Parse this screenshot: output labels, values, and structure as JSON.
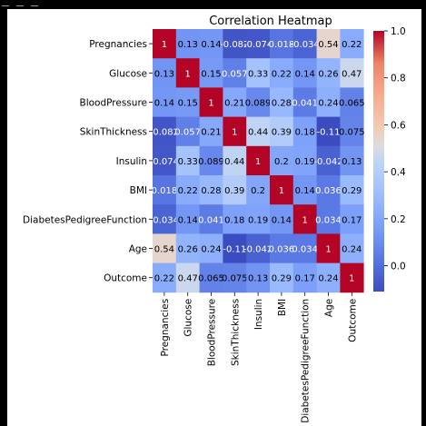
{
  "window": {
    "top_icons": [
      "chevron-icon",
      "home-icon",
      "save-icon"
    ]
  },
  "colors": {
    "background": "#000000",
    "figure": "#ffffff",
    "cmap_low": "#3b4cc0",
    "cmap_mid": "#dddddd",
    "cmap_high": "#b40426"
  },
  "chart_data": {
    "type": "heatmap",
    "title": "Correlation Heatmap",
    "xlabel": "",
    "ylabel": "",
    "colormap": "coolwarm",
    "annotations": true,
    "categories": [
      "Pregnancies",
      "Glucose",
      "BloodPressure",
      "SkinThickness",
      "Insulin",
      "BMI",
      "DiabetesPedigreeFunction",
      "Age",
      "Outcome"
    ],
    "values": [
      [
        1,
        0.13,
        0.14,
        -0.082,
        -0.074,
        0.018,
        -0.034,
        0.54,
        0.22
      ],
      [
        0.13,
        1,
        0.15,
        0.057,
        0.33,
        0.22,
        0.14,
        0.26,
        0.47
      ],
      [
        0.14,
        0.15,
        1,
        0.21,
        0.089,
        0.28,
        0.041,
        0.24,
        0.065
      ],
      [
        -0.082,
        0.057,
        0.21,
        1,
        0.44,
        0.39,
        0.18,
        -0.11,
        0.075
      ],
      [
        -0.074,
        0.33,
        0.089,
        0.44,
        1,
        0.2,
        0.19,
        -0.042,
        0.13
      ],
      [
        0.018,
        0.22,
        0.28,
        0.39,
        0.2,
        1,
        0.14,
        0.036,
        0.29
      ],
      [
        -0.034,
        0.14,
        0.041,
        0.18,
        0.19,
        0.14,
        1,
        0.034,
        0.17
      ],
      [
        0.54,
        0.26,
        0.24,
        -0.11,
        -0.042,
        0.036,
        0.034,
        1,
        0.24
      ],
      [
        0.22,
        0.47,
        0.065,
        0.075,
        0.13,
        0.29,
        0.17,
        0.24,
        1
      ]
    ],
    "labels": [
      [
        "1",
        "0.13",
        "0.14",
        "-0.082",
        "-0.074",
        "0.018",
        "-0.034",
        "0.54",
        "0.22"
      ],
      [
        "0.13",
        "1",
        "0.15",
        "0.057",
        "0.33",
        "0.22",
        "0.14",
        "0.26",
        "0.47"
      ],
      [
        "0.14",
        "0.15",
        "1",
        "0.21",
        "0.089",
        "0.28",
        "0.041",
        "0.24",
        "0.065"
      ],
      [
        "-0.082",
        "0.057",
        "0.21",
        "1",
        "0.44",
        "0.39",
        "0.18",
        "-0.11",
        "0.075"
      ],
      [
        "-0.074",
        "0.33",
        "0.089",
        "0.44",
        "1",
        "0.2",
        "0.19",
        "-0.042",
        "0.13"
      ],
      [
        "0.018",
        "0.22",
        "0.28",
        "0.39",
        "0.2",
        "1",
        "0.14",
        "0.036",
        "0.29"
      ],
      [
        "-0.034",
        "0.14",
        "0.041",
        "0.18",
        "0.19",
        "0.14",
        "1",
        "0.034",
        "0.17"
      ],
      [
        "0.54",
        "0.26",
        "0.24",
        "-0.11",
        "-0.042",
        "0.036",
        "0.034",
        "1",
        "0.24"
      ],
      [
        "0.22",
        "0.47",
        "0.065",
        "0.075",
        "0.13",
        "0.29",
        "0.17",
        "0.24",
        "1"
      ]
    ],
    "colorbar": {
      "range": [
        -0.11,
        1.0
      ],
      "ticks": [
        0.0,
        0.2,
        0.4,
        0.6,
        0.8,
        1.0
      ],
      "tick_labels": [
        "0.0",
        "0.2",
        "0.4",
        "0.6",
        "0.8",
        "1.0"
      ]
    }
  }
}
